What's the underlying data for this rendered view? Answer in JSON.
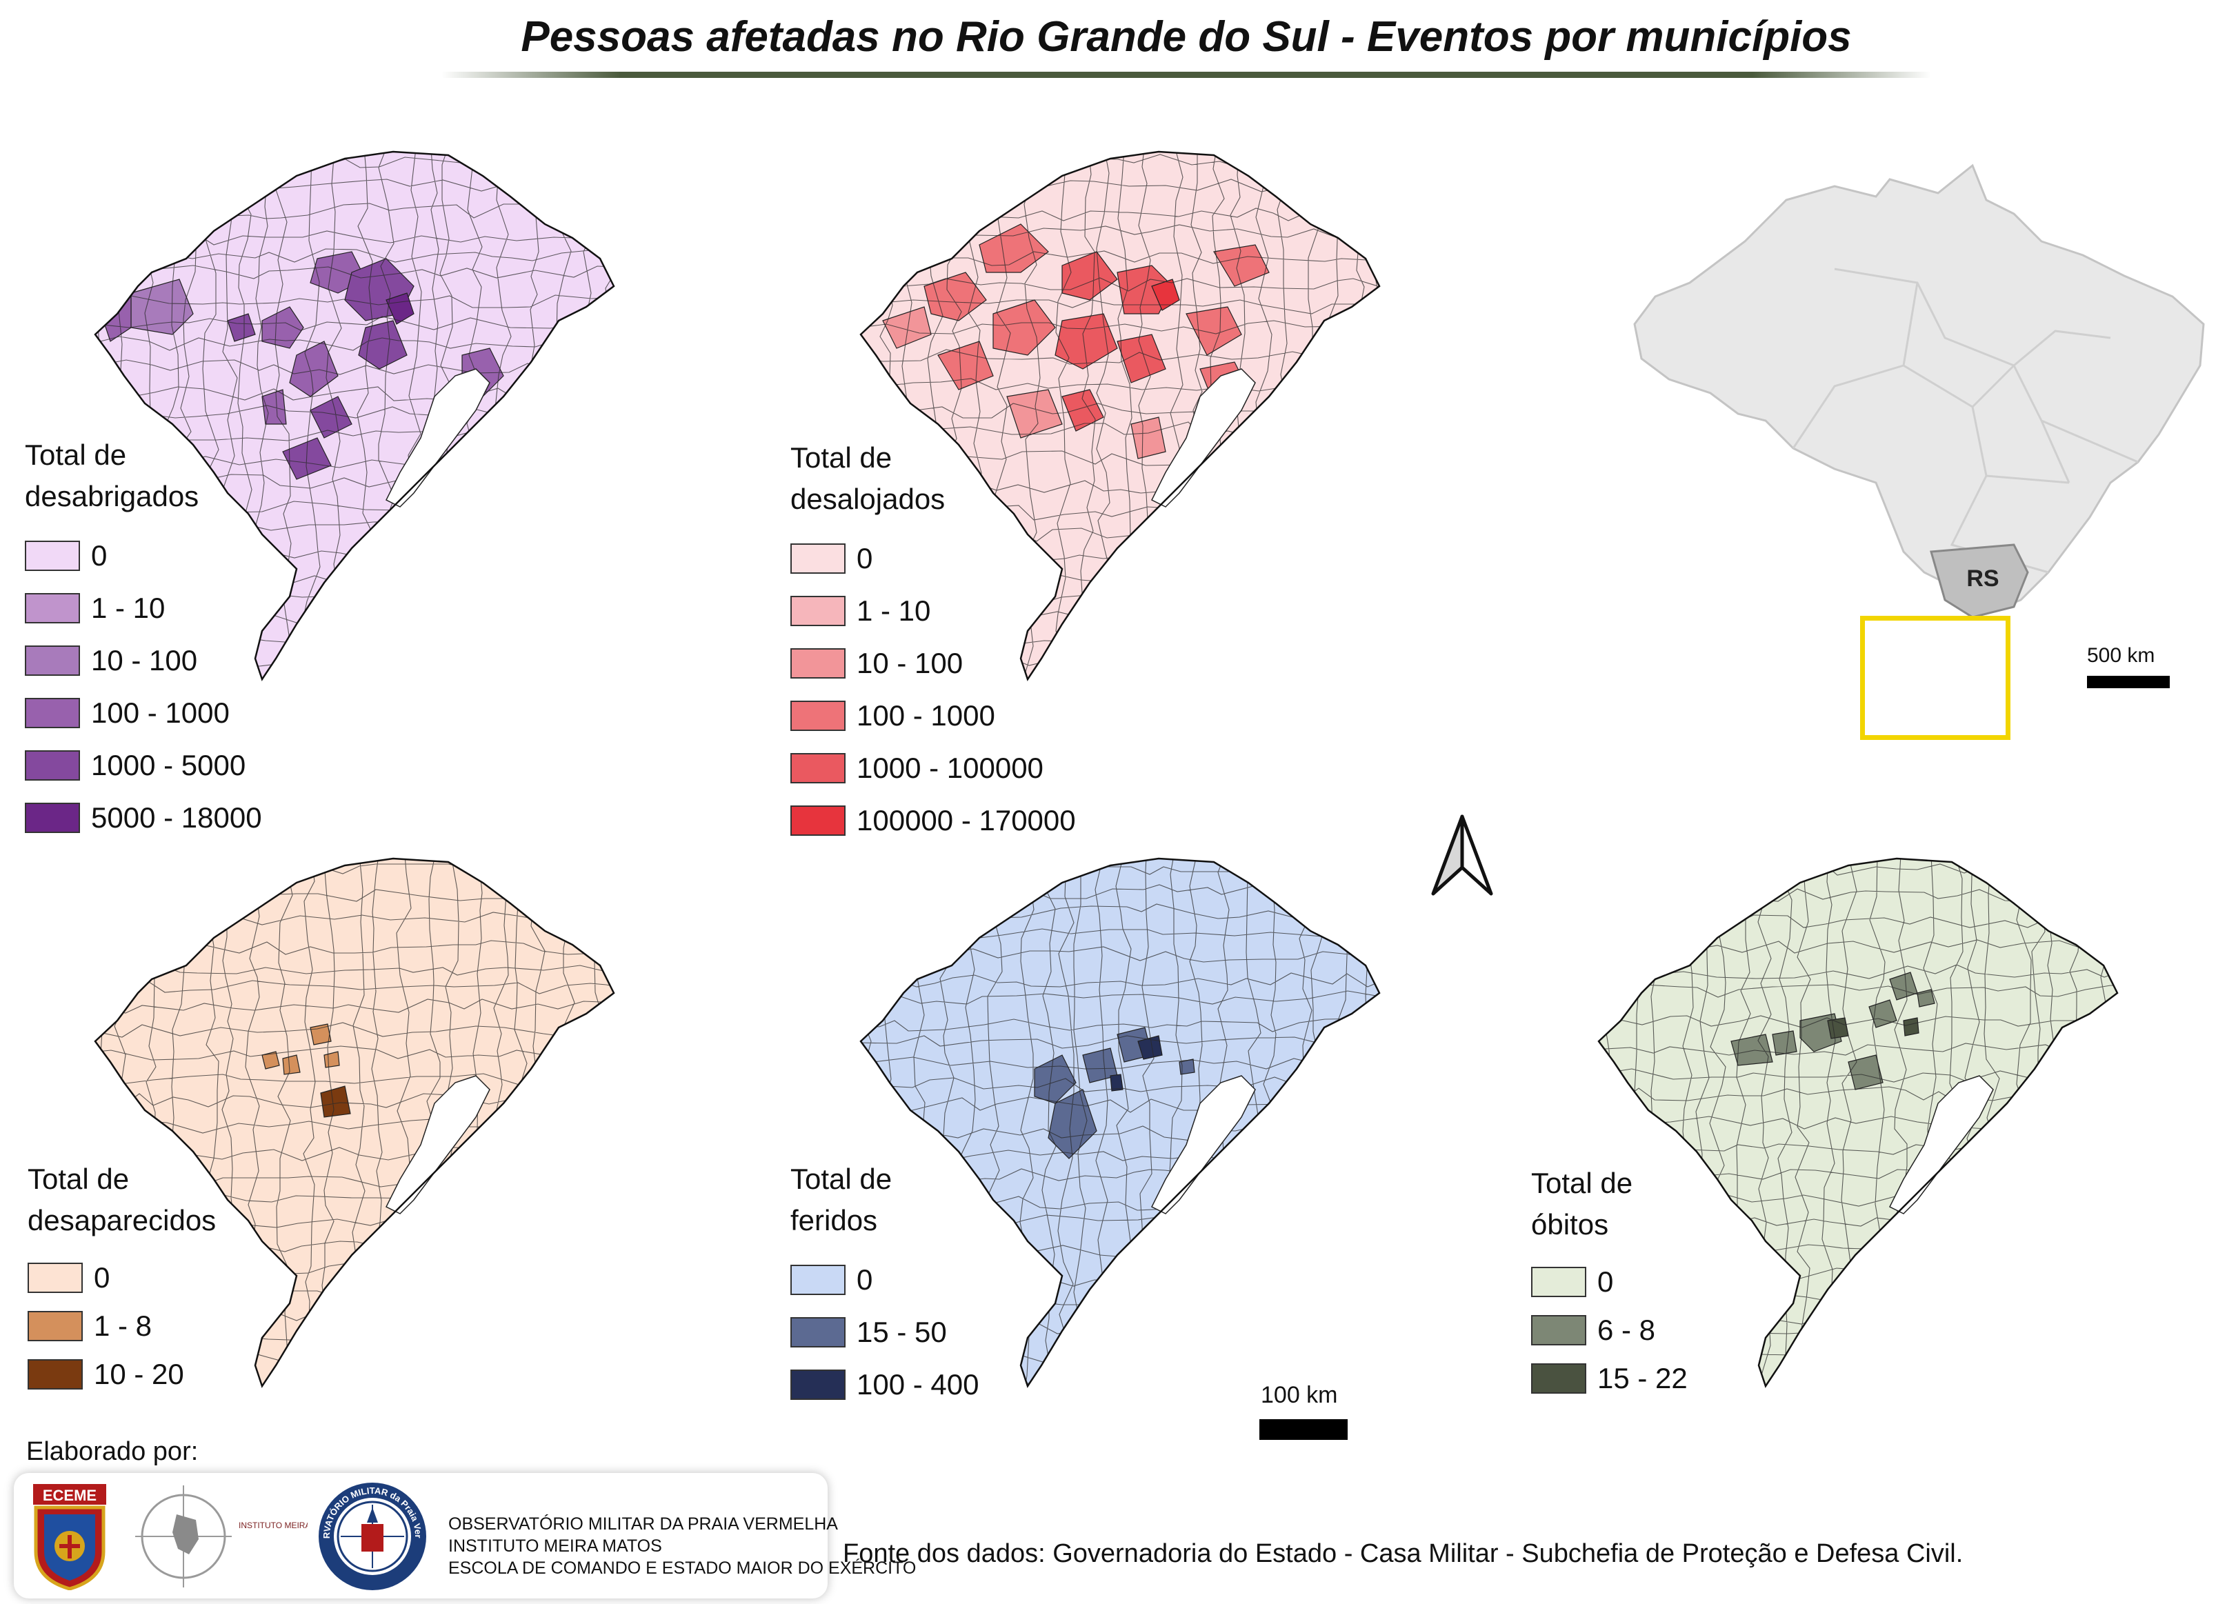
{
  "title": "Pessoas afetadas no Rio Grande do Sul - Eventos por municípios",
  "maps": [
    {
      "id": "desabrigados",
      "legend_title_lines": [
        "Total de",
        "desabrigados"
      ],
      "classes": [
        {
          "label": "0",
          "color": "#f1d9f7"
        },
        {
          "label": "1 - 10",
          "color": "#c094cc"
        },
        {
          "label": "10 - 100",
          "color": "#a87bbb"
        },
        {
          "label": "100 - 1000",
          "color": "#9861ad"
        },
        {
          "label": "1000 - 5000",
          "color": "#84499e"
        },
        {
          "label": "5000 - 18000",
          "color": "#6b2687"
        }
      ]
    },
    {
      "id": "desalojados",
      "legend_title_lines": [
        "Total de",
        "desalojados"
      ],
      "classes": [
        {
          "label": "0",
          "color": "#fbdfe1"
        },
        {
          "label": "1 - 10",
          "color": "#f6b6bb"
        },
        {
          "label": "10 - 100",
          "color": "#f29599"
        },
        {
          "label": "100 - 1000",
          "color": "#ee7378"
        },
        {
          "label": "1000 - 100000",
          "color": "#ea5960"
        },
        {
          "label": "100000 - 170000",
          "color": "#e7343d"
        }
      ]
    },
    {
      "id": "desaparecidos",
      "legend_title_lines": [
        "Total de",
        "desaparecidos"
      ],
      "classes": [
        {
          "label": "0",
          "color": "#fde3d3"
        },
        {
          "label": "1 - 8",
          "color": "#d4905c"
        },
        {
          "label": "10 - 20",
          "color": "#7a3a10"
        }
      ]
    },
    {
      "id": "feridos",
      "legend_title_lines": [
        "Total de",
        "feridos"
      ],
      "classes": [
        {
          "label": "0",
          "color": "#c9d9f5"
        },
        {
          "label": "15 - 50",
          "color": "#5c6a92"
        },
        {
          "label": "100 - 400",
          "color": "#252f56"
        }
      ]
    },
    {
      "id": "obitos",
      "legend_title_lines": [
        "Total de",
        "óbitos"
      ],
      "classes": [
        {
          "label": "0",
          "color": "#e4ecd9"
        },
        {
          "label": "6 - 8",
          "color": "#7d8775"
        },
        {
          "label": "15 - 22",
          "color": "#4a5240"
        }
      ]
    }
  ],
  "inset": {
    "state_label": "RS",
    "scale_label": "500 km",
    "highlight_color": "#f2d500"
  },
  "main_scale_label": "100 km",
  "credits": {
    "label": "Elaborado por:",
    "logos": [
      "ECEME",
      "INSTITUTO MEIRA MATTOS",
      "OBSERVATÓRIO MILITAR da Praia Vermelha"
    ],
    "lines": [
      "OBSERVATÓRIO MILITAR DA PRAIA VERMELHA",
      "INSTITUTO MEIRA MATOS",
      "ESCOLA DE COMANDO E ESTADO MAIOR DO EXÉRCITO"
    ]
  },
  "source": "Fonte dos dados: Governadoria do Estado - Casa Militar - Subchefia de Proteção e Defesa Civil."
}
